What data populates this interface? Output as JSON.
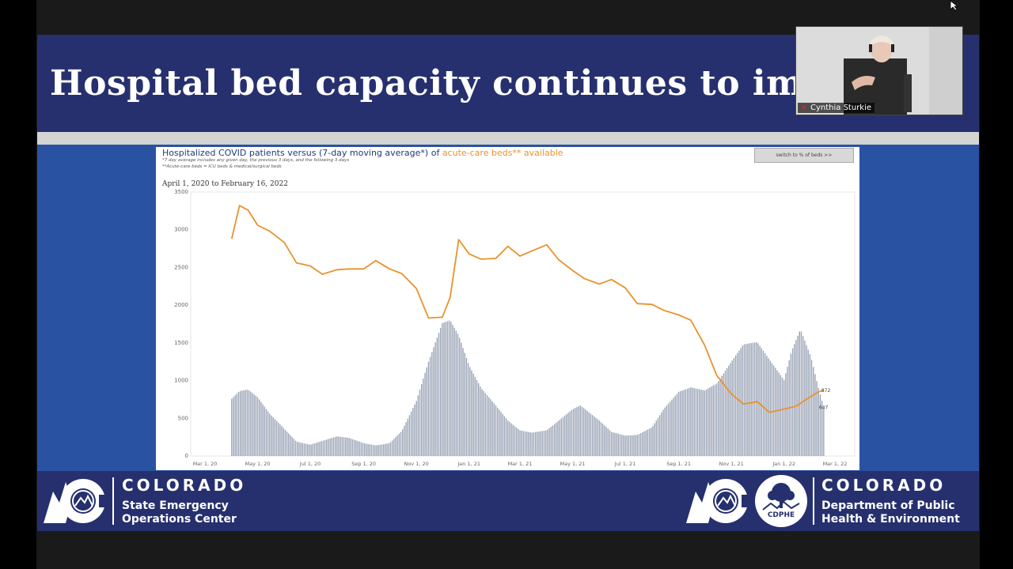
{
  "slide": {
    "title": "Hospital bed capacity continues to impro"
  },
  "chart": {
    "title_part1": "Hospitalized COVID patients versus (7-day moving average*) of ",
    "title_highlight": "acute-care beds** available",
    "note1": "*7 day average includes any given day, the previous 3 days, and the following 3 days",
    "note2": "**Acute-care beds = ICU beds & medical/surgical beds",
    "switch_label": "switch to % of beds >>",
    "date_range": "April 1, 2020 to February 16, 2022"
  },
  "chart_data": {
    "type": "bar",
    "title": "Hospitalized COVID patients versus (7-day moving average*) of acute-care beds** available",
    "ylim": [
      0,
      3500
    ],
    "yticks": [
      "0",
      "500",
      "1000",
      "1500",
      "2000",
      "2500",
      "3000",
      "3500"
    ],
    "xticks": [
      "Mar 1, 20",
      "May 1, 20",
      "Jul 1, 20",
      "Sep 1, 20",
      "Nov 1, 20",
      "Jan 1, 21",
      "Mar 1, 21",
      "May 1, 21",
      "Jul 1, 21",
      "Sep 1, 21",
      "Nov 1, 21",
      "Jan 1, 22",
      "Mar 1, 22"
    ],
    "series": [
      {
        "kind": "bar",
        "color": "#9aa3b5",
        "points": [
          [
            "2020-04-01",
            760
          ],
          [
            "2020-04-10",
            860
          ],
          [
            "2020-04-20",
            880
          ],
          [
            "2020-05-01",
            780
          ],
          [
            "2020-05-15",
            560
          ],
          [
            "2020-06-01",
            360
          ],
          [
            "2020-06-15",
            190
          ],
          [
            "2020-07-01",
            150
          ],
          [
            "2020-07-15",
            200
          ],
          [
            "2020-08-01",
            260
          ],
          [
            "2020-08-15",
            240
          ],
          [
            "2020-09-01",
            170
          ],
          [
            "2020-09-15",
            140
          ],
          [
            "2020-10-01",
            170
          ],
          [
            "2020-10-15",
            330
          ],
          [
            "2020-11-01",
            730
          ],
          [
            "2020-11-15",
            1250
          ],
          [
            "2020-12-01",
            1760
          ],
          [
            "2020-12-10",
            1800
          ],
          [
            "2020-12-20",
            1600
          ],
          [
            "2021-01-01",
            1200
          ],
          [
            "2021-01-15",
            900
          ],
          [
            "2021-02-01",
            670
          ],
          [
            "2021-02-15",
            470
          ],
          [
            "2021-03-01",
            340
          ],
          [
            "2021-03-15",
            310
          ],
          [
            "2021-04-01",
            340
          ],
          [
            "2021-04-15",
            470
          ],
          [
            "2021-05-01",
            620
          ],
          [
            "2021-05-10",
            670
          ],
          [
            "2021-05-20",
            580
          ],
          [
            "2021-06-01",
            470
          ],
          [
            "2021-06-15",
            320
          ],
          [
            "2021-07-01",
            270
          ],
          [
            "2021-07-15",
            280
          ],
          [
            "2021-08-01",
            380
          ],
          [
            "2021-08-15",
            630
          ],
          [
            "2021-09-01",
            850
          ],
          [
            "2021-09-15",
            910
          ],
          [
            "2021-10-01",
            870
          ],
          [
            "2021-10-15",
            960
          ],
          [
            "2021-11-01",
            1250
          ],
          [
            "2021-11-15",
            1480
          ],
          [
            "2021-12-01",
            1510
          ],
          [
            "2021-12-15",
            1280
          ],
          [
            "2022-01-01",
            1010
          ],
          [
            "2022-01-10",
            1400
          ],
          [
            "2022-01-20",
            1680
          ],
          [
            "2022-02-01",
            1320
          ],
          [
            "2022-02-10",
            900
          ],
          [
            "2022-02-16",
            647
          ]
        ]
      },
      {
        "kind": "line",
        "color": "#e8922e",
        "points": [
          [
            "2020-04-01",
            2880
          ],
          [
            "2020-04-10",
            3320
          ],
          [
            "2020-04-20",
            3260
          ],
          [
            "2020-05-01",
            3060
          ],
          [
            "2020-05-15",
            2980
          ],
          [
            "2020-06-01",
            2830
          ],
          [
            "2020-06-15",
            2560
          ],
          [
            "2020-07-01",
            2520
          ],
          [
            "2020-07-15",
            2410
          ],
          [
            "2020-08-01",
            2470
          ],
          [
            "2020-08-15",
            2480
          ],
          [
            "2020-09-01",
            2480
          ],
          [
            "2020-09-15",
            2590
          ],
          [
            "2020-10-01",
            2480
          ],
          [
            "2020-10-15",
            2420
          ],
          [
            "2020-11-01",
            2220
          ],
          [
            "2020-11-15",
            1830
          ],
          [
            "2020-12-01",
            1840
          ],
          [
            "2020-12-10",
            2100
          ],
          [
            "2020-12-20",
            2870
          ],
          [
            "2021-01-01",
            2680
          ],
          [
            "2021-01-15",
            2610
          ],
          [
            "2021-02-01",
            2620
          ],
          [
            "2021-02-15",
            2780
          ],
          [
            "2021-03-01",
            2650
          ],
          [
            "2021-03-15",
            2720
          ],
          [
            "2021-04-01",
            2800
          ],
          [
            "2021-04-15",
            2600
          ],
          [
            "2021-05-01",
            2460
          ],
          [
            "2021-05-15",
            2350
          ],
          [
            "2021-06-01",
            2280
          ],
          [
            "2021-06-15",
            2340
          ],
          [
            "2021-07-01",
            2230
          ],
          [
            "2021-07-15",
            2020
          ],
          [
            "2021-08-01",
            2010
          ],
          [
            "2021-08-15",
            1930
          ],
          [
            "2021-09-01",
            1870
          ],
          [
            "2021-09-15",
            1800
          ],
          [
            "2021-10-01",
            1470
          ],
          [
            "2021-10-15",
            1070
          ],
          [
            "2021-11-01",
            820
          ],
          [
            "2021-11-15",
            690
          ],
          [
            "2021-12-01",
            720
          ],
          [
            "2021-12-15",
            580
          ],
          [
            "2022-01-01",
            620
          ],
          [
            "2022-01-15",
            660
          ],
          [
            "2022-02-01",
            790
          ],
          [
            "2022-02-10",
            850
          ],
          [
            "2022-02-16",
            872
          ]
        ]
      }
    ],
    "labels": [
      "872",
      "647"
    ]
  },
  "footer": {
    "left_word": "COLORADO",
    "left_sub1": "State Emergency",
    "left_sub2": "Operations Center",
    "cdphe_label": "CDPHE",
    "right_word": "COLORADO",
    "right_sub1": "Department of Public",
    "right_sub2": "Health & Environment"
  },
  "pip": {
    "name": "Cynthia Sturkie"
  },
  "colors": {
    "title_band": "#26306e",
    "slide_bg": "#2a52a3",
    "bars": "#9aa3b5",
    "line": "#e8922e"
  }
}
